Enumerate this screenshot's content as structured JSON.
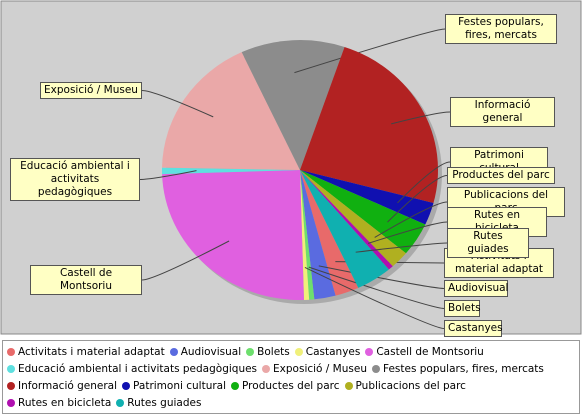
{
  "chart_data": {
    "type": "pie",
    "categories": [
      "Activitats i material adaptat",
      "Audiovisual",
      "Bolets",
      "Castanyes",
      "Castell de Montsoriu",
      "Educació ambiental i activitats pedagògiques",
      "Exposició / Museu",
      "Festes populars, fires, mercats",
      "Informació general",
      "Patrimoni cultural",
      "Productes del parc",
      "Publicacions del parc",
      "Rutes en bicicleta",
      "Rutes guiades"
    ],
    "values": [
      2.8,
      2.5,
      0.6,
      0.6,
      25,
      0.8,
      17.8,
      12.2,
      23.9,
      2.8,
      4.2,
      2.2,
      0.6,
      4.2
    ],
    "colors": [
      "#e86a6a",
      "#5a6be0",
      "#6ddf6d",
      "#f0f07a",
      "#e060e0",
      "#5fe0e0",
      "#eaa8a8",
      "#8c8c8c",
      "#b22222",
      "#1010b0",
      "#10b010",
      "#b0b020",
      "#b010b0",
      "#10b0b0"
    ],
    "legend": "bottom"
  }
}
